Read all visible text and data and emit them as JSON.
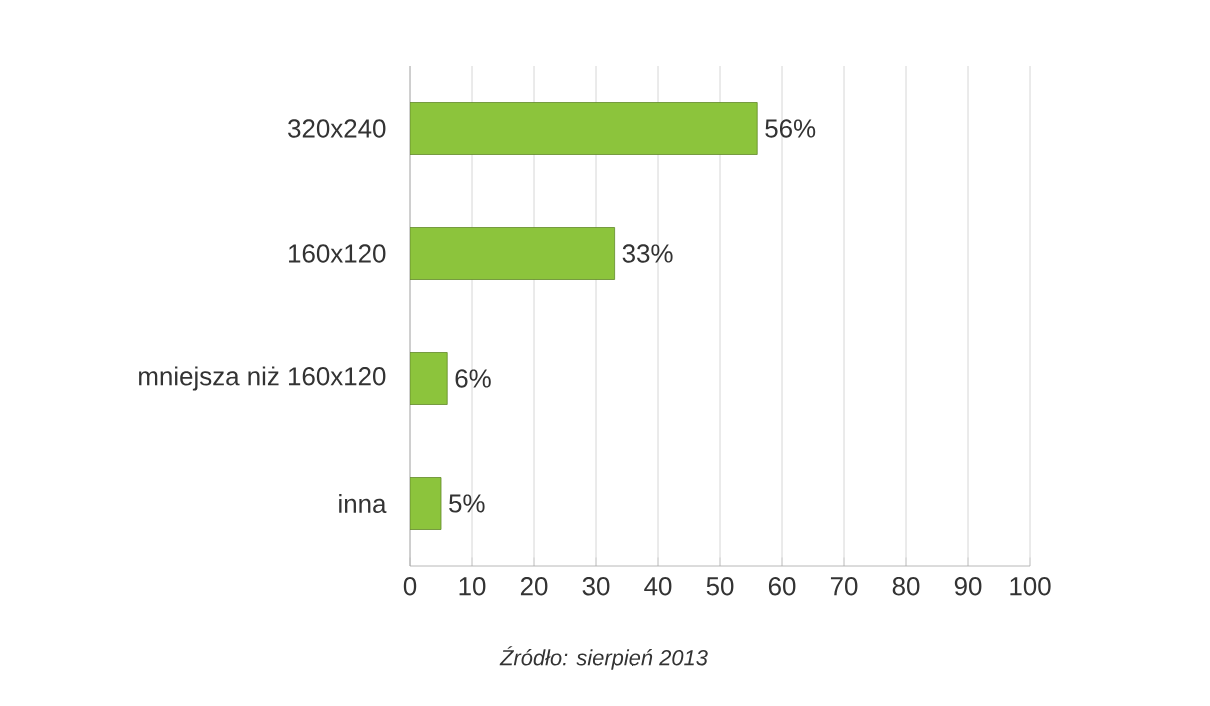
{
  "chart_data": {
    "type": "bar",
    "orientation": "horizontal",
    "categories": [
      "320x240",
      "160x120",
      "mniejsza niż 160x120",
      "inna"
    ],
    "values": [
      56,
      33,
      6,
      5
    ],
    "value_labels": [
      "56%",
      "33%",
      "6%",
      "5%"
    ],
    "color": "#8cc43c",
    "xlim": [
      0,
      100
    ],
    "xticks": [
      0,
      10,
      20,
      30,
      40,
      50,
      60,
      70,
      80,
      90,
      100
    ],
    "grid": "x",
    "annotations": [
      "*Źródło: sierpień 2013*"
    ]
  }
}
